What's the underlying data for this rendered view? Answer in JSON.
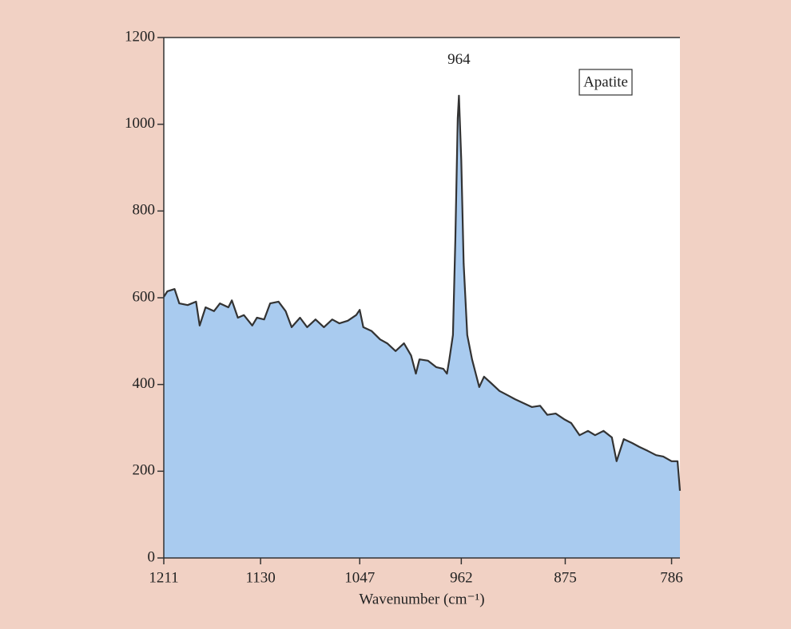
{
  "chart_data": {
    "type": "area",
    "xlabel": "Wavenumber (cm⁻¹)",
    "peak_label": "964",
    "legend": "upper right",
    "line_color": "#333333",
    "x": [
      1211,
      1208,
      1202,
      1198,
      1191,
      1184,
      1181,
      1176,
      1169,
      1164,
      1157,
      1154,
      1149,
      1144,
      1137,
      1133,
      1127,
      1122,
      1115,
      1109,
      1104,
      1097,
      1091,
      1084,
      1077,
      1070,
      1064,
      1057,
      1050,
      1047,
      1044,
      1037,
      1030,
      1024,
      1017,
      1010,
      1004,
      1000,
      997,
      990,
      983,
      977,
      974,
      972,
      969,
      967,
      965,
      964,
      962,
      960,
      957,
      953,
      947,
      943,
      937,
      930,
      923,
      917,
      910,
      903,
      896,
      890,
      883,
      876,
      870,
      863,
      856,
      850,
      843,
      836,
      832,
      826,
      819,
      813,
      806,
      799,
      793,
      786,
      781,
      779
    ],
    "series": [
      {
        "name": "Apatite",
        "color": "#a9cbef",
        "values": [
          602,
          615,
          620,
          587,
          583,
          591,
          536,
          578,
          569,
          587,
          578,
          594,
          554,
          560,
          536,
          554,
          550,
          587,
          591,
          569,
          532,
          554,
          532,
          550,
          532,
          550,
          541,
          547,
          560,
          572,
          532,
          523,
          504,
          495,
          477,
          495,
          467,
          425,
          458,
          455,
          440,
          436,
          425,
          458,
          514,
          734,
          1014,
          1066,
          918,
          679,
          514,
          458,
          394,
          418,
          403,
          385,
          375,
          366,
          357,
          348,
          351,
          330,
          333,
          320,
          311,
          283,
          293,
          283,
          293,
          278,
          223,
          274,
          265,
          256,
          247,
          237,
          234,
          223,
          223,
          155
        ]
      }
    ],
    "xlim": [
      1211,
      779
    ],
    "xticks": [
      1211,
      1130,
      1047,
      962,
      875,
      786
    ],
    "ylim": [
      0,
      1200
    ],
    "yticks": [
      0,
      200,
      400,
      600,
      800,
      1000,
      1200
    ]
  }
}
